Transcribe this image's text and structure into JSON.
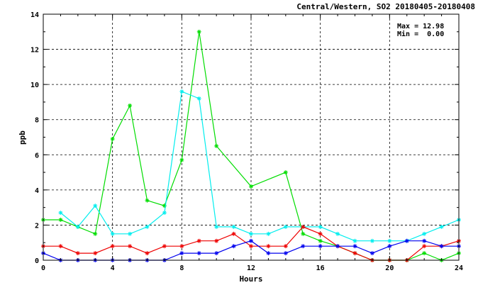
{
  "chart_data": {
    "type": "line",
    "title": "Central/Western, SO2 20180405-20180408",
    "xlabel": "Hours",
    "ylabel": "ppb",
    "xlim": [
      0,
      24
    ],
    "ylim": [
      0,
      14
    ],
    "x_ticks": [
      0,
      4,
      8,
      12,
      16,
      20,
      24
    ],
    "y_ticks": [
      0,
      2,
      4,
      6,
      8,
      10,
      12,
      14
    ],
    "grid": true,
    "stats": {
      "max_label": "Max = 12.98",
      "min_label": "Min =  0.00"
    },
    "series": [
      {
        "color": "#00dd00",
        "x": [
          0,
          1,
          2,
          3,
          4,
          5,
          6,
          7,
          8,
          9,
          10,
          12,
          14,
          15,
          16,
          17,
          18,
          19,
          20,
          21,
          22,
          23,
          24
        ],
        "values": [
          2.3,
          2.3,
          1.9,
          1.5,
          6.9,
          8.8,
          3.4,
          3.1,
          5.7,
          13.0,
          6.5,
          4.2,
          5.0,
          1.5,
          1.1,
          0.8,
          0.4,
          0.0,
          0.0,
          0.0,
          0.4,
          0.0,
          0.4
        ]
      },
      {
        "color": "#00eeee",
        "x": [
          1,
          2,
          3,
          4,
          5,
          6,
          7,
          8,
          9,
          10,
          11,
          12,
          13,
          14,
          15,
          16,
          17,
          18,
          19,
          20,
          21,
          22,
          23,
          24
        ],
        "values": [
          2.7,
          1.9,
          3.1,
          1.5,
          1.5,
          1.9,
          2.7,
          9.6,
          9.2,
          1.9,
          1.9,
          1.5,
          1.5,
          1.9,
          1.9,
          1.9,
          1.5,
          1.1,
          1.1,
          1.1,
          1.1,
          1.5,
          1.9,
          2.3
        ]
      },
      {
        "color": "#ee0000",
        "x": [
          0,
          1,
          2,
          3,
          4,
          5,
          6,
          7,
          8,
          9,
          10,
          11,
          12,
          13,
          14,
          15,
          16,
          17,
          18,
          19,
          20,
          21,
          22,
          23,
          24
        ],
        "values": [
          0.8,
          0.8,
          0.4,
          0.4,
          0.8,
          0.8,
          0.4,
          0.8,
          0.8,
          1.1,
          1.1,
          1.5,
          0.8,
          0.8,
          0.8,
          1.9,
          1.5,
          0.8,
          0.4,
          0.0,
          0.0,
          0.0,
          0.8,
          0.8,
          1.1
        ]
      },
      {
        "color": "#0000ee",
        "x": [
          0,
          1,
          2,
          3,
          4,
          5,
          6,
          7,
          8,
          9,
          10,
          11,
          12,
          13,
          14,
          15,
          16,
          17,
          18,
          19,
          20,
          21,
          22,
          23,
          24
        ],
        "values": [
          0.4,
          0.0,
          0.0,
          0.0,
          0.0,
          0.0,
          0.0,
          0.0,
          0.4,
          0.4,
          0.4,
          0.8,
          1.1,
          0.4,
          0.4,
          0.8,
          0.8,
          0.8,
          0.8,
          0.4,
          0.8,
          1.1,
          1.1,
          0.8,
          0.8
        ]
      }
    ]
  }
}
